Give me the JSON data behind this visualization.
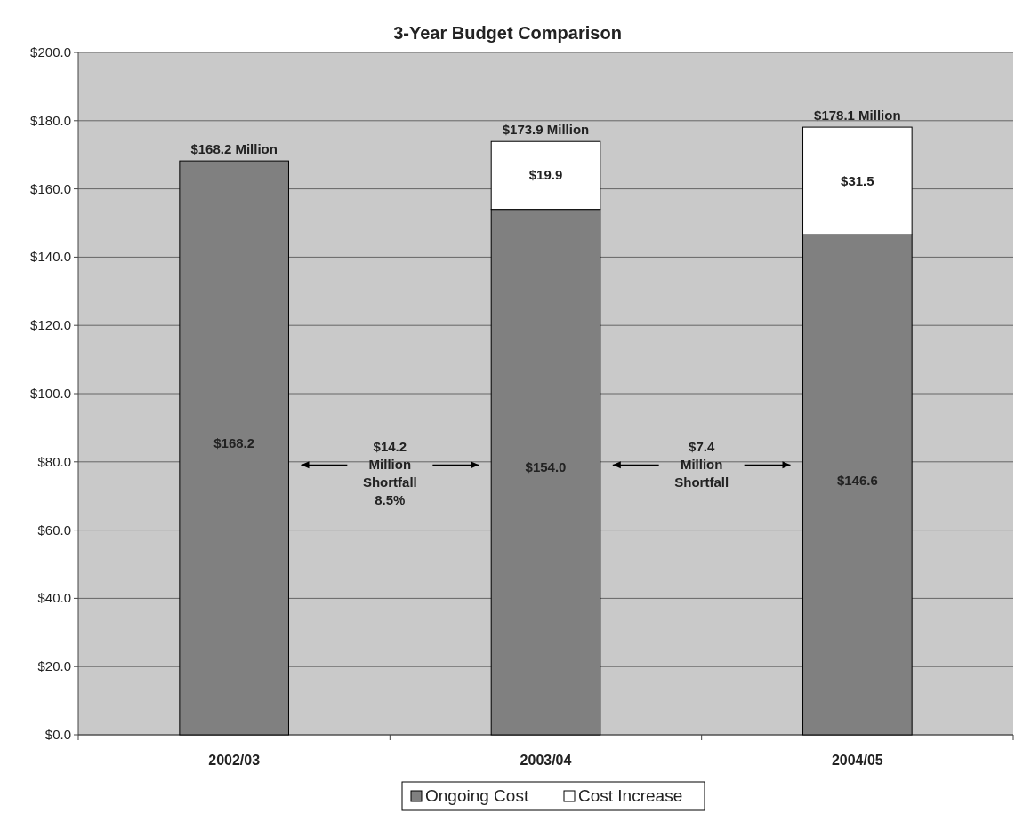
{
  "chart_data": {
    "type": "bar",
    "title": "3-Year Budget Comparison",
    "categories": [
      "2002/03",
      "2003/04",
      "2004/05"
    ],
    "stacked": true,
    "series": [
      {
        "name": "Ongoing Cost",
        "color": "#808080",
        "values": [
          168.2,
          154.0,
          146.6
        ],
        "value_labels": [
          "$168.2",
          "$154.0",
          "$146.6"
        ]
      },
      {
        "name": "Cost Increase",
        "color": "#ffffff",
        "values": [
          null,
          19.9,
          31.5
        ],
        "value_labels": [
          null,
          "$19.9",
          "$31.5"
        ]
      }
    ],
    "totals": [
      "$168.2 Million",
      "$173.9 Million",
      "$178.1 Million"
    ],
    "annotations": [
      "$14.2\nMillion\nShortfall\n8.5%",
      "$7.4\nMillion\nShortfall"
    ],
    "ylim": [
      0,
      200
    ],
    "yticks": [
      {
        "value": 0,
        "label": "$0.0"
      },
      {
        "value": 20,
        "label": "$20.0"
      },
      {
        "value": 40,
        "label": "$40.0"
      },
      {
        "value": 60,
        "label": "$60.0"
      },
      {
        "value": 80,
        "label": "$80.0"
      },
      {
        "value": 100,
        "label": "$100.0"
      },
      {
        "value": 120,
        "label": "$120.0"
      },
      {
        "value": 140,
        "label": "$140.0"
      },
      {
        "value": 160,
        "label": "$160.0"
      },
      {
        "value": 180,
        "label": "$180.0"
      },
      {
        "value": 200,
        "label": "$200.0"
      }
    ],
    "grid": "y",
    "legend": "bottom"
  }
}
